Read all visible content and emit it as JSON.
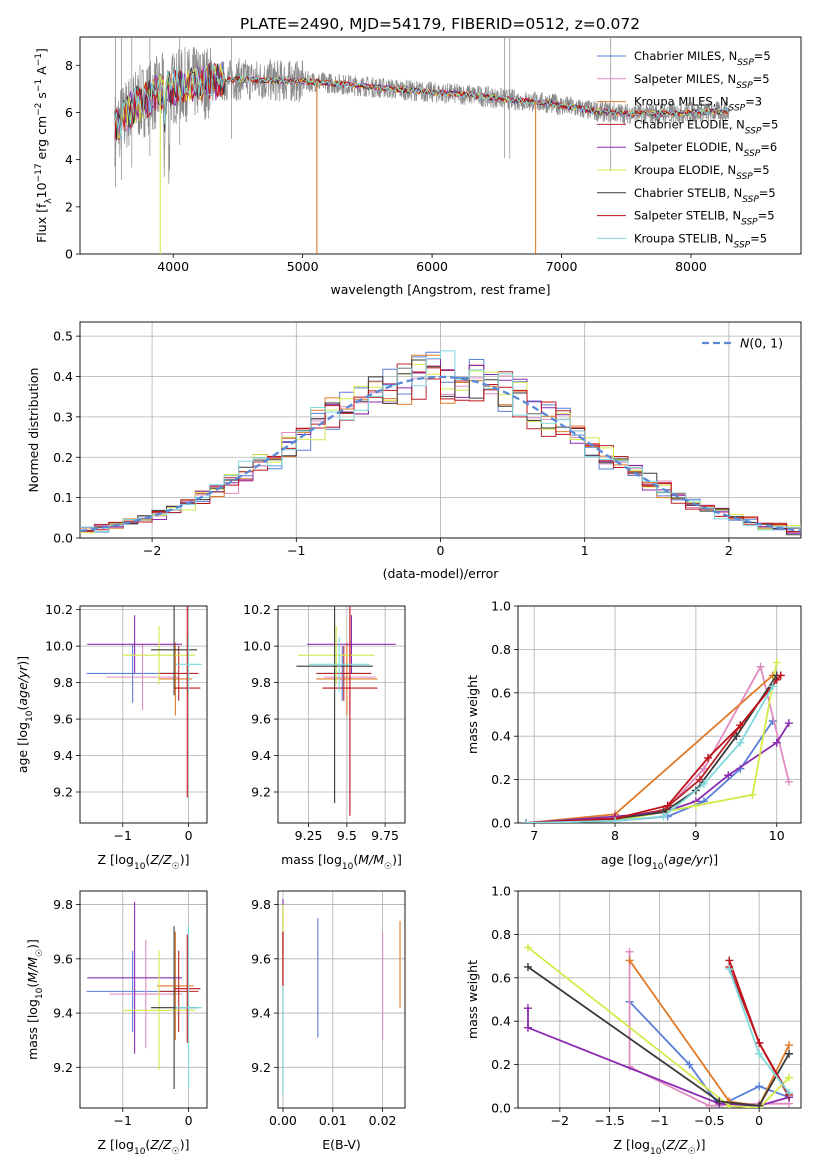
{
  "figure_title": "PLATE=2490, MJD=54179, FIBERID=0512, z=0.072",
  "models": [
    {
      "name": "Chabrier MILES",
      "nssp": "5",
      "color": "#5a7fd6"
    },
    {
      "name": "Salpeter MILES",
      "nssp": "5",
      "color": "#e08cc0"
    },
    {
      "name": "Kroupa MILES",
      "nssp": "3",
      "color": "#e07a28"
    },
    {
      "name": "Chabrier ELODIE",
      "nssp": "5",
      "color": "#b5272c"
    },
    {
      "name": "Salpeter ELODIE",
      "nssp": "6",
      "color": "#8b2bb0"
    },
    {
      "name": "Kroupa ELODIE",
      "nssp": "5",
      "color": "#d4ea4a"
    },
    {
      "name": "Chabrier STELIB",
      "nssp": "5",
      "color": "#3a3a3a"
    },
    {
      "name": "Salpeter STELIB",
      "nssp": "5",
      "color": "#c0121a"
    },
    {
      "name": "Kroupa STELIB",
      "nssp": "5",
      "color": "#7fd8dc"
    }
  ],
  "chart_data": [
    {
      "id": "spectrum",
      "type": "line",
      "xlabel": "wavelength [Angstrom, rest frame]",
      "ylabel": "Flux [f",
      "xlim": [
        3280,
        8850
      ],
      "ylim": [
        0,
        9.2
      ],
      "xticks": [
        4000,
        5000,
        6000,
        7000,
        8000
      ],
      "yticks": [
        0,
        2,
        4,
        6,
        8
      ],
      "continuum": {
        "x": [
          3550,
          3700,
          3900,
          4100,
          4300,
          4500,
          4800,
          5100,
          5400,
          5700,
          6000,
          6300,
          6600,
          6900,
          7200,
          7500,
          7800,
          8000,
          8300
        ],
        "y": [
          5.3,
          6.3,
          6.9,
          7.2,
          7.3,
          7.4,
          7.35,
          7.3,
          7.15,
          7.0,
          6.85,
          6.75,
          6.55,
          6.4,
          6.1,
          5.95,
          5.95,
          6.0,
          6.05
        ]
      },
      "grid": false
    },
    {
      "id": "residuals",
      "type": "histogram",
      "xlabel": "(data-model)/error",
      "ylabel": "Normed distribution",
      "xlim": [
        -2.5,
        2.5
      ],
      "ylim": [
        0,
        0.535
      ],
      "xticks": [
        -2,
        -1,
        0,
        1,
        2
      ],
      "yticks": [
        0,
        0.1,
        0.2,
        0.3,
        0.4,
        0.5
      ],
      "bin_width": 0.1,
      "reference": {
        "name": "N(0,1)",
        "mean": 0,
        "sigma": 1,
        "color": "#5a8ad6"
      },
      "legend": "top-right",
      "grid": true
    },
    {
      "id": "age-vs-z",
      "type": "scatter",
      "xlabel": "Z [log10(Z/Z☉)]",
      "ylabel": "age  [log10(age/yr)]",
      "xlim": [
        -1.65,
        0.28
      ],
      "ylim": [
        9.03,
        10.22
      ],
      "xticks": [
        -1,
        0
      ],
      "yticks": [
        9.2,
        9.4,
        9.6,
        9.8,
        10.0,
        10.2
      ],
      "points": [
        {
          "x": -0.85,
          "y": 9.85,
          "xerr": 0.7,
          "yerr": 0.16,
          "model": 0
        },
        {
          "x": -0.7,
          "y": 9.83,
          "xerr": 0.55,
          "yerr": 0.18,
          "model": 1
        },
        {
          "x": -0.2,
          "y": 9.82,
          "xerr": 0.25,
          "yerr": 0.2,
          "model": 2
        },
        {
          "x": -0.15,
          "y": 9.85,
          "xerr": 0.3,
          "yerr": 0.15,
          "model": 3
        },
        {
          "x": -0.82,
          "y": 10.01,
          "xerr": 0.72,
          "yerr": 0.16,
          "model": 4
        },
        {
          "x": -0.45,
          "y": 9.95,
          "xerr": 0.55,
          "yerr": 0.16,
          "model": 5
        },
        {
          "x": -0.22,
          "y": 9.98,
          "xerr": 0.35,
          "yerr": 0.25,
          "model": 6
        },
        {
          "x": -0.02,
          "y": 9.77,
          "xerr": 0.2,
          "yerr": 0.6,
          "model": 7
        },
        {
          "x": 0.0,
          "y": 9.9,
          "xerr": 0.2,
          "yerr": 0.15,
          "model": 8
        }
      ],
      "grid": true
    },
    {
      "id": "age-vs-mass",
      "type": "scatter",
      "xlabel": "mass [log10(M/M☉)]",
      "ylabel": "",
      "xlim": [
        9.05,
        9.88
      ],
      "ylim": [
        9.03,
        10.22
      ],
      "xticks": [
        9.25,
        9.5,
        9.75
      ],
      "yticks": [
        9.2,
        9.4,
        9.6,
        9.8,
        10.0,
        10.2
      ],
      "points": [
        {
          "x": 9.47,
          "y": 9.85,
          "xerr": 0.12,
          "yerr": 0.15,
          "model": 0
        },
        {
          "x": 9.52,
          "y": 9.83,
          "xerr": 0.17,
          "yerr": 0.2,
          "model": 1
        },
        {
          "x": 9.5,
          "y": 9.82,
          "xerr": 0.2,
          "yerr": 0.2,
          "model": 2
        },
        {
          "x": 9.48,
          "y": 9.85,
          "xerr": 0.18,
          "yerr": 0.15,
          "model": 3
        },
        {
          "x": 9.53,
          "y": 10.01,
          "xerr": 0.29,
          "yerr": 0.16,
          "model": 4
        },
        {
          "x": 9.43,
          "y": 9.95,
          "xerr": 0.25,
          "yerr": 0.16,
          "model": 5
        },
        {
          "x": 9.42,
          "y": 9.89,
          "xerr": 0.25,
          "yerr": 0.75,
          "model": 6
        },
        {
          "x": 9.52,
          "y": 9.77,
          "xerr": 0.18,
          "yerr": 0.7,
          "model": 7
        },
        {
          "x": 9.45,
          "y": 9.9,
          "xerr": 0.2,
          "yerr": 0.15,
          "model": 8
        }
      ],
      "grid": true
    },
    {
      "id": "weight-vs-age",
      "type": "line",
      "xlabel": "age  [log10(age/yr)]",
      "ylabel": "mass weight",
      "xlim": [
        6.8,
        10.3
      ],
      "ylim": [
        0,
        1.0
      ],
      "xticks": [
        7,
        8,
        9,
        10
      ],
      "yticks": [
        0,
        0.2,
        0.4,
        0.6,
        0.8,
        1.0
      ],
      "series": [
        {
          "model": 0,
          "x": [
            6.9,
            8.0,
            8.65,
            9.1,
            9.55,
            9.95
          ],
          "y": [
            0,
            0.01,
            0.03,
            0.1,
            0.25,
            0.47
          ]
        },
        {
          "model": 1,
          "x": [
            6.9,
            8.0,
            8.6,
            9.1,
            9.8,
            10.15
          ],
          "y": [
            0,
            0.02,
            0.05,
            0.25,
            0.72,
            0.19
          ]
        },
        {
          "model": 2,
          "x": [
            6.9,
            8.0,
            9.95
          ],
          "y": [
            0,
            0.04,
            0.68
          ]
        },
        {
          "model": 3,
          "x": [
            6.9,
            8.0,
            8.6,
            9.05,
            9.55,
            10.0
          ],
          "y": [
            0,
            0.02,
            0.06,
            0.2,
            0.45,
            0.66
          ]
        },
        {
          "model": 4,
          "x": [
            6.9,
            8.0,
            8.6,
            9.0,
            9.4,
            10.0,
            10.15
          ],
          "y": [
            0,
            0.03,
            0.05,
            0.1,
            0.22,
            0.37,
            0.46
          ]
        },
        {
          "model": 5,
          "x": [
            6.9,
            8.0,
            8.6,
            9.0,
            9.7,
            10.0
          ],
          "y": [
            0,
            0.01,
            0.05,
            0.08,
            0.13,
            0.74
          ]
        },
        {
          "model": 6,
          "x": [
            6.9,
            8.0,
            8.6,
            9.0,
            9.5,
            10.0
          ],
          "y": [
            0,
            0.02,
            0.05,
            0.15,
            0.4,
            0.68
          ]
        },
        {
          "model": 7,
          "x": [
            6.9,
            8.0,
            8.65,
            9.15,
            9.55,
            10.05
          ],
          "y": [
            0,
            0.02,
            0.08,
            0.3,
            0.45,
            0.68
          ]
        },
        {
          "model": 8,
          "x": [
            6.9,
            8.0,
            8.6,
            9.1,
            9.55,
            9.95
          ],
          "y": [
            0,
            0.01,
            0.03,
            0.18,
            0.37,
            0.63
          ]
        }
      ],
      "grid": true
    },
    {
      "id": "mass-vs-z",
      "type": "scatter",
      "xlabel": "Z [log10(Z/Z☉)]",
      "ylabel": "mass [log10(M/M☉)]",
      "xlim": [
        -1.65,
        0.28
      ],
      "ylim": [
        9.05,
        9.85
      ],
      "xticks": [
        -1,
        0
      ],
      "yticks": [
        9.2,
        9.4,
        9.6,
        9.8
      ],
      "points": [
        {
          "x": -0.85,
          "y": 9.48,
          "xerr": 0.7,
          "yerr": 0.15,
          "model": 0
        },
        {
          "x": -0.65,
          "y": 9.47,
          "xerr": 0.55,
          "yerr": 0.2,
          "model": 1
        },
        {
          "x": -0.2,
          "y": 9.5,
          "xerr": 0.28,
          "yerr": 0.2,
          "model": 2
        },
        {
          "x": -0.15,
          "y": 9.48,
          "xerr": 0.3,
          "yerr": 0.15,
          "model": 3
        },
        {
          "x": -0.82,
          "y": 9.53,
          "xerr": 0.72,
          "yerr": 0.28,
          "model": 4
        },
        {
          "x": -0.45,
          "y": 9.41,
          "xerr": 0.55,
          "yerr": 0.22,
          "model": 5
        },
        {
          "x": -0.22,
          "y": 9.42,
          "xerr": 0.35,
          "yerr": 0.3,
          "model": 6
        },
        {
          "x": -0.02,
          "y": 9.49,
          "xerr": 0.2,
          "yerr": 0.2,
          "model": 7
        },
        {
          "x": 0.0,
          "y": 9.42,
          "xerr": 0.2,
          "yerr": 0.3,
          "model": 8
        }
      ],
      "grid": true
    },
    {
      "id": "mass-vs-ebv",
      "type": "scatter",
      "xlabel": "E(B-V)",
      "ylabel": "",
      "xlim": [
        -0.001,
        0.0245
      ],
      "ylim": [
        9.05,
        9.85
      ],
      "xticks": [
        0.0,
        0.01,
        0.02
      ],
      "yticks": [
        9.2,
        9.4,
        9.6,
        9.8
      ],
      "points": [
        {
          "x": 0.007,
          "y": 9.53,
          "yerr": 0.22,
          "model": 0
        },
        {
          "x": 0.02,
          "y": 9.5,
          "yerr": 0.2,
          "model": 1
        },
        {
          "x": 0.0235,
          "y": 9.58,
          "yerr": 0.16,
          "model": 2
        },
        {
          "x": 0.0,
          "y": 9.65,
          "yerr": 0.15,
          "model": 3
        },
        {
          "x": 0.0,
          "y": 9.72,
          "yerr": 0.1,
          "model": 4
        },
        {
          "x": 0.0,
          "y": 9.68,
          "yerr": 0.12,
          "model": 5
        },
        {
          "x": 0.0,
          "y": 9.4,
          "yerr": 0.3,
          "model": 6
        },
        {
          "x": 0.0,
          "y": 9.6,
          "yerr": 0.1,
          "model": 7
        },
        {
          "x": 0.0,
          "y": 9.3,
          "yerr": 0.2,
          "model": 8
        }
      ],
      "grid": true
    },
    {
      "id": "weight-vs-z",
      "type": "line",
      "xlabel": "Z [log10(Z/Z☉)]",
      "ylabel": "mass weight",
      "xlim": [
        -2.42,
        0.42
      ],
      "ylim": [
        0,
        1.0
      ],
      "xticks": [
        -2.0,
        -1.5,
        -1.0,
        -0.5,
        0.0
      ],
      "yticks": [
        0,
        0.2,
        0.4,
        0.6,
        0.8,
        1.0
      ],
      "series": [
        {
          "model": 0,
          "x": [
            -1.3,
            -0.7,
            -0.4,
            0.0,
            0.3
          ],
          "y": [
            0.49,
            0.2,
            0.01,
            0.1,
            0.05
          ]
        },
        {
          "model": 1,
          "x": [
            -1.3,
            -1.3,
            -0.5,
            0.0,
            0.3
          ],
          "y": [
            0.72,
            0.19,
            0.01,
            0.02,
            0.02
          ]
        },
        {
          "model": 2,
          "x": [
            -1.3,
            -0.3,
            0.0,
            0.3
          ],
          "y": [
            0.68,
            0.03,
            0.01,
            0.29
          ]
        },
        {
          "model": 3,
          "x": [
            -0.3,
            0.0,
            0.3
          ],
          "y": [
            0.65,
            0.3,
            0.05
          ]
        },
        {
          "model": 4,
          "x": [
            -2.32,
            -2.32,
            -0.4,
            0.0,
            0.3
          ],
          "y": [
            0.46,
            0.37,
            0.02,
            0.01,
            0.05
          ]
        },
        {
          "model": 5,
          "x": [
            -2.32,
            -0.3,
            0.0,
            0.3
          ],
          "y": [
            0.74,
            0.01,
            0.0,
            0.14
          ]
        },
        {
          "model": 6,
          "x": [
            -2.32,
            -0.4,
            0.0,
            0.3
          ],
          "y": [
            0.65,
            0.03,
            0.01,
            0.25
          ]
        },
        {
          "model": 7,
          "x": [
            -0.3,
            0.0,
            0.3
          ],
          "y": [
            0.68,
            0.3,
            0.06
          ]
        },
        {
          "model": 8,
          "x": [
            -0.3,
            0.0,
            0.3
          ],
          "y": [
            0.64,
            0.25,
            0.07
          ]
        }
      ],
      "grid": true
    }
  ]
}
